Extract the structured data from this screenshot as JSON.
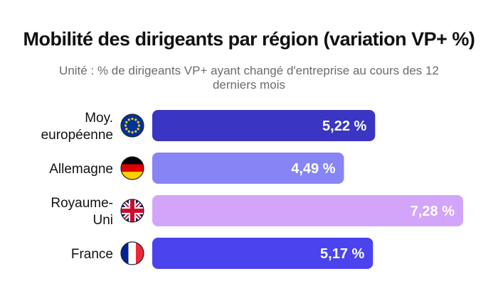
{
  "chart_data": {
    "type": "bar",
    "orientation": "horizontal",
    "title": "Mobilité des dirigeants par région (variation VP+ %)",
    "subtitle": "Unité : % de dirigeants VP+ ayant changé d'entreprise au cours des 12 derniers mois",
    "categories": [
      [
        "Moy.",
        "européenne"
      ],
      [
        "Allemagne"
      ],
      [
        "Royaume-",
        "Uni"
      ],
      [
        "France"
      ]
    ],
    "values": [
      5.22,
      4.49,
      7.28,
      5.17
    ],
    "value_labels": [
      "5,22 %",
      "4,49 %",
      "7,28 %",
      "5,17 %"
    ],
    "icons": [
      "eu-flag-icon",
      "germany-flag-icon",
      "uk-flag-icon",
      "france-flag-icon"
    ],
    "bar_colors": [
      "#3a35c2",
      "#8784f5",
      "#d3a5fa",
      "#4a43ee"
    ],
    "xlim": [
      0,
      7.28
    ],
    "grid": false,
    "legend": "none"
  }
}
